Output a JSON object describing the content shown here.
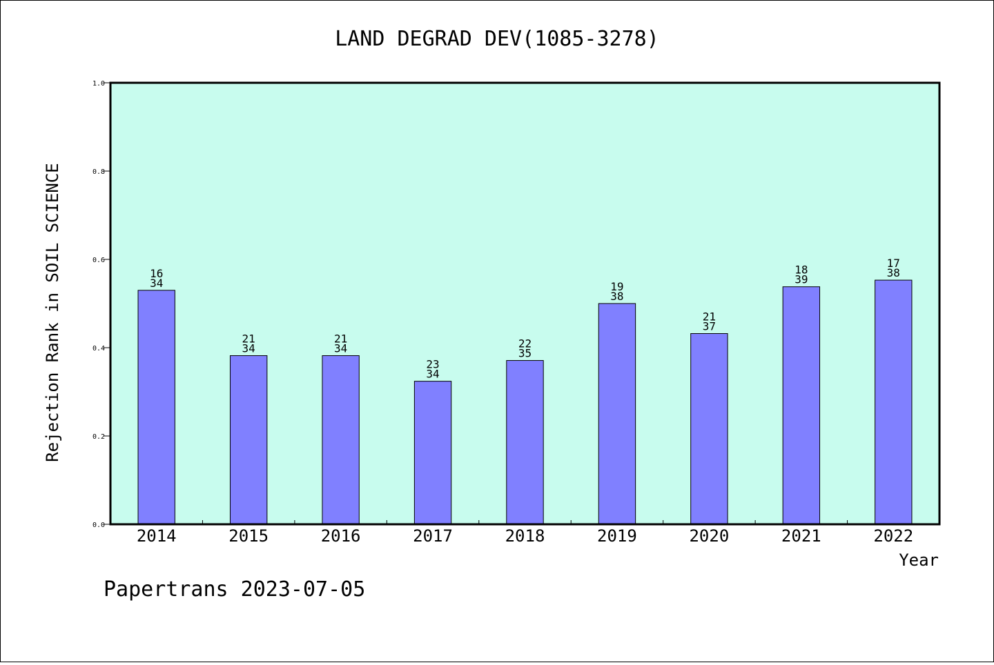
{
  "chart_data": {
    "type": "bar",
    "title": "LAND DEGRAD DEV(1085-3278)",
    "ylabel": "Rejection Rank in SOIL SCIENCE",
    "xlabel": "Year",
    "categories": [
      "2014",
      "2015",
      "2016",
      "2017",
      "2018",
      "2019",
      "2020",
      "2021",
      "2022"
    ],
    "values": [
      0.53,
      0.382,
      0.382,
      0.324,
      0.371,
      0.5,
      0.432,
      0.538,
      0.553
    ],
    "bar_labels": [
      [
        "16",
        "34"
      ],
      [
        "21",
        "34"
      ],
      [
        "21",
        "34"
      ],
      [
        "23",
        "34"
      ],
      [
        "22",
        "35"
      ],
      [
        "19",
        "38"
      ],
      [
        "21",
        "37"
      ],
      [
        "18",
        "39"
      ],
      [
        "17",
        "38"
      ]
    ],
    "ylim": [
      0,
      1
    ],
    "yticks": [
      "0.0",
      "0.2",
      "0.4",
      "0.6",
      "0.8",
      "1.0"
    ],
    "grid": false,
    "colors": {
      "plot_background": "#c8fcee",
      "bar_fill": "#8080ff",
      "bar_stroke": "#000000",
      "axis": "#000000"
    }
  },
  "footer": {
    "text": "Papertrans 2023-07-05"
  }
}
